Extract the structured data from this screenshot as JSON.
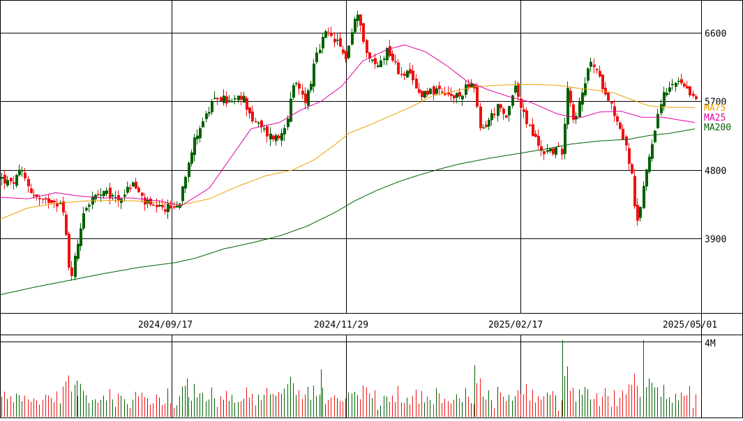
{
  "chart_data": {
    "type": "candlestick",
    "price_axis": {
      "ticks": [
        3900,
        4800,
        5700,
        6600
      ],
      "tick_labels": [
        "3900",
        "4800",
        "5700",
        "6600"
      ],
      "ylim": [
        3000,
        6900
      ]
    },
    "date_axis": {
      "tick_labels": [
        "2024/09/17",
        "2024/11/29",
        "2025/02/17",
        "2025/05/01"
      ]
    },
    "volume_axis": {
      "tick_labels": [
        "4M"
      ],
      "ylim": [
        0,
        4000000
      ]
    },
    "legend": [
      {
        "name": "MA75",
        "color": "#e8a000"
      },
      {
        "name": "MA25",
        "color": "#e000a0"
      },
      {
        "name": "MA200",
        "color": "#006000"
      }
    ],
    "colors": {
      "up": "#006000",
      "down": "#ee1111",
      "grid": "#000000",
      "ma75": "#e8a000",
      "ma25": "#e000a0",
      "ma200": "#006000"
    },
    "anchor_points": {
      "close": [
        [
          0,
          4700
        ],
        [
          15,
          4600
        ],
        [
          30,
          4780
        ],
        [
          45,
          4500
        ],
        [
          60,
          4360
        ],
        [
          72,
          4420
        ],
        [
          88,
          4350
        ],
        [
          95,
          3850
        ],
        [
          100,
          3350
        ],
        [
          108,
          3700
        ],
        [
          118,
          4250
        ],
        [
          132,
          4430
        ],
        [
          150,
          4480
        ],
        [
          170,
          4420
        ],
        [
          190,
          4620
        ],
        [
          205,
          4390
        ],
        [
          222,
          4270
        ],
        [
          238,
          4300
        ],
        [
          255,
          4320
        ],
        [
          268,
          4880
        ],
        [
          282,
          5300
        ],
        [
          300,
          5600
        ],
        [
          312,
          5760
        ],
        [
          330,
          5680
        ],
        [
          348,
          5750
        ],
        [
          362,
          5450
        ],
        [
          372,
          5360
        ],
        [
          385,
          5250
        ],
        [
          400,
          5220
        ],
        [
          412,
          5520
        ],
        [
          422,
          5950
        ],
        [
          438,
          5700
        ],
        [
          452,
          6250
        ],
        [
          465,
          6580
        ],
        [
          480,
          6500
        ],
        [
          495,
          6270
        ],
        [
          508,
          6780
        ],
        [
          515,
          6800
        ],
        [
          525,
          6300
        ],
        [
          540,
          6150
        ],
        [
          555,
          6400
        ],
        [
          570,
          6100
        ],
        [
          585,
          6050
        ],
        [
          600,
          5800
        ],
        [
          618,
          5850
        ],
        [
          635,
          5780
        ],
        [
          648,
          5750
        ],
        [
          660,
          5760
        ],
        [
          668,
          5950
        ],
        [
          678,
          5900
        ],
        [
          688,
          5300
        ],
        [
          700,
          5450
        ],
        [
          712,
          5620
        ],
        [
          725,
          5460
        ],
        [
          736,
          5950
        ],
        [
          748,
          5550
        ],
        [
          762,
          5280
        ],
        [
          776,
          5040
        ],
        [
          790,
          5060
        ],
        [
          806,
          5050
        ],
        [
          812,
          5950
        ],
        [
          822,
          5460
        ],
        [
          835,
          5800
        ],
        [
          846,
          6250
        ],
        [
          858,
          6000
        ],
        [
          870,
          5800
        ],
        [
          880,
          5540
        ],
        [
          892,
          5250
        ],
        [
          904,
          4800
        ],
        [
          912,
          4000
        ],
        [
          922,
          4620
        ],
        [
          932,
          5080
        ],
        [
          946,
          5700
        ],
        [
          958,
          5850
        ],
        [
          972,
          5950
        ],
        [
          985,
          5800
        ],
        [
          997,
          5780
        ]
      ],
      "ma25": [
        [
          0,
          4440
        ],
        [
          40,
          4420
        ],
        [
          80,
          4500
        ],
        [
          110,
          4460
        ],
        [
          150,
          4430
        ],
        [
          190,
          4430
        ],
        [
          230,
          4390
        ],
        [
          260,
          4330
        ],
        [
          300,
          4560
        ],
        [
          330,
          4950
        ],
        [
          360,
          5340
        ],
        [
          400,
          5420
        ],
        [
          430,
          5580
        ],
        [
          460,
          5700
        ],
        [
          490,
          5900
        ],
        [
          520,
          6230
        ],
        [
          555,
          6380
        ],
        [
          580,
          6440
        ],
        [
          610,
          6350
        ],
        [
          640,
          6170
        ],
        [
          670,
          5960
        ],
        [
          700,
          5850
        ],
        [
          730,
          5760
        ],
        [
          760,
          5690
        ],
        [
          800,
          5530
        ],
        [
          830,
          5480
        ],
        [
          860,
          5560
        ],
        [
          890,
          5570
        ],
        [
          920,
          5490
        ],
        [
          950,
          5490
        ],
        [
          997,
          5420
        ]
      ],
      "ma75": [
        [
          0,
          4150
        ],
        [
          40,
          4300
        ],
        [
          80,
          4360
        ],
        [
          120,
          4390
        ],
        [
          160,
          4400
        ],
        [
          200,
          4390
        ],
        [
          240,
          4360
        ],
        [
          260,
          4340
        ],
        [
          300,
          4420
        ],
        [
          340,
          4580
        ],
        [
          380,
          4720
        ],
        [
          420,
          4800
        ],
        [
          450,
          4930
        ],
        [
          480,
          5130
        ],
        [
          500,
          5280
        ],
        [
          530,
          5390
        ],
        [
          560,
          5510
        ],
        [
          590,
          5630
        ],
        [
          620,
          5770
        ],
        [
          650,
          5830
        ],
        [
          680,
          5890
        ],
        [
          710,
          5910
        ],
        [
          740,
          5920
        ],
        [
          770,
          5920
        ],
        [
          800,
          5910
        ],
        [
          830,
          5870
        ],
        [
          860,
          5840
        ],
        [
          880,
          5810
        ],
        [
          900,
          5740
        ],
        [
          930,
          5640
        ],
        [
          960,
          5620
        ],
        [
          997,
          5620
        ]
      ],
      "ma200": [
        [
          0,
          3160
        ],
        [
          50,
          3260
        ],
        [
          100,
          3350
        ],
        [
          150,
          3440
        ],
        [
          200,
          3520
        ],
        [
          250,
          3580
        ],
        [
          280,
          3640
        ],
        [
          320,
          3760
        ],
        [
          360,
          3840
        ],
        [
          400,
          3930
        ],
        [
          440,
          4060
        ],
        [
          480,
          4240
        ],
        [
          510,
          4400
        ],
        [
          540,
          4530
        ],
        [
          570,
          4640
        ],
        [
          600,
          4730
        ],
        [
          630,
          4810
        ],
        [
          660,
          4880
        ],
        [
          700,
          4950
        ],
        [
          740,
          5010
        ],
        [
          780,
          5070
        ],
        [
          820,
          5140
        ],
        [
          860,
          5180
        ],
        [
          900,
          5200
        ],
        [
          930,
          5250
        ],
        [
          960,
          5280
        ],
        [
          997,
          5340
        ]
      ]
    }
  }
}
